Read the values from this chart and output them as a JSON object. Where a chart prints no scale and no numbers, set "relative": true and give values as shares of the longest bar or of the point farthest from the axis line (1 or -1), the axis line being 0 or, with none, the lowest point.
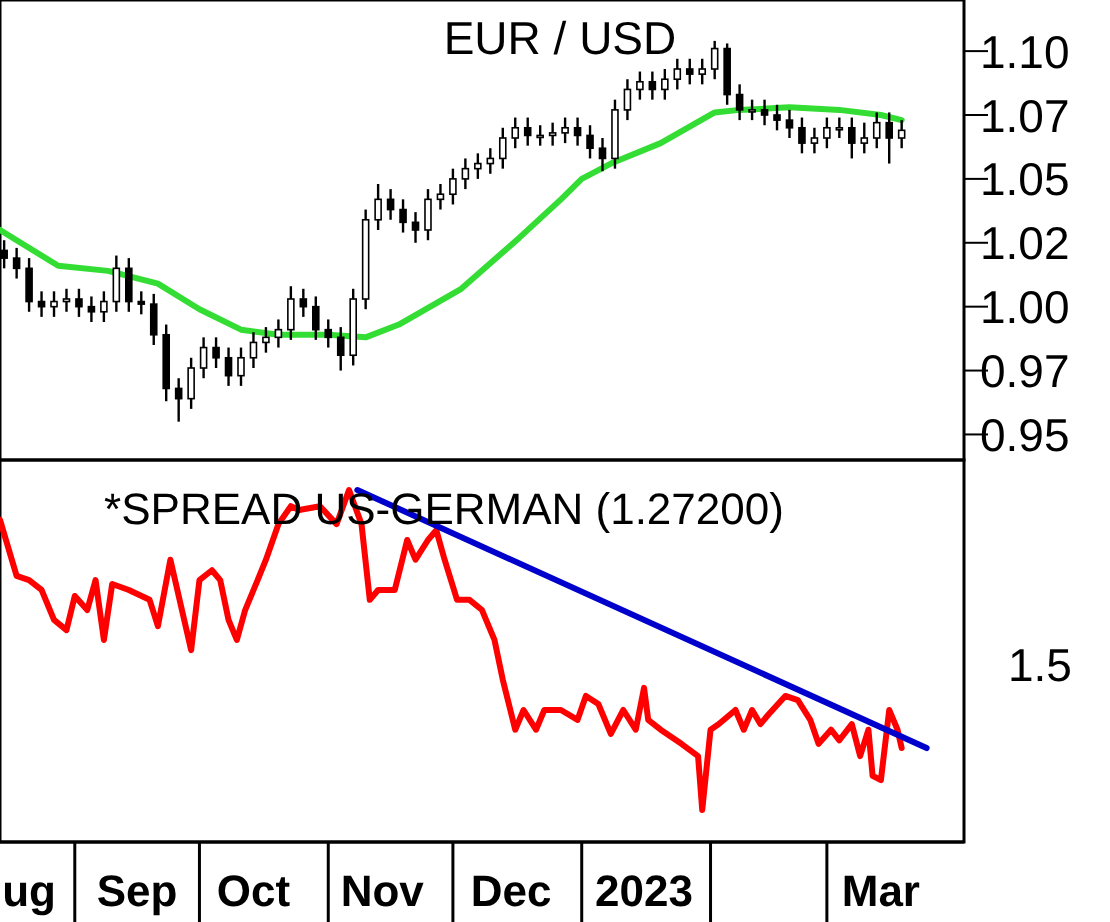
{
  "chart_data": [
    {
      "type": "candlestick",
      "title": "EUR / USD",
      "color": "#000000",
      "x": [
        "2022-08-15",
        "2022-08-18",
        "2022-08-21",
        "2022-08-24",
        "2022-08-27",
        "2022-08-30",
        "2022-09-02",
        "2022-09-05",
        "2022-09-08",
        "2022-09-11",
        "2022-09-14",
        "2022-09-17",
        "2022-09-20",
        "2022-09-23",
        "2022-09-26",
        "2022-09-29",
        "2022-10-02",
        "2022-10-05",
        "2022-10-08",
        "2022-10-11",
        "2022-10-14",
        "2022-10-17",
        "2022-10-20",
        "2022-10-23",
        "2022-10-26",
        "2022-10-29",
        "2022-11-01",
        "2022-11-04",
        "2022-11-07",
        "2022-11-10",
        "2022-11-13",
        "2022-11-16",
        "2022-11-19",
        "2022-11-22",
        "2022-11-25",
        "2022-11-28",
        "2022-12-01",
        "2022-12-04",
        "2022-12-07",
        "2022-12-10",
        "2022-12-13",
        "2022-12-16",
        "2022-12-19",
        "2022-12-22",
        "2022-12-25",
        "2022-12-28",
        "2022-12-31",
        "2023-01-03",
        "2023-01-06",
        "2023-01-09",
        "2023-01-12",
        "2023-01-15",
        "2023-01-18",
        "2023-01-21",
        "2023-01-24",
        "2023-01-27",
        "2023-01-30",
        "2023-02-02",
        "2023-02-05",
        "2023-02-08",
        "2023-02-11",
        "2023-02-14",
        "2023-02-17",
        "2023-02-20",
        "2023-02-23",
        "2023-02-26",
        "2023-03-01",
        "2023-03-04",
        "2023-03-07",
        "2023-03-10",
        "2023-03-13",
        "2023-03-16",
        "2023-03-19"
      ],
      "ohlc": [
        [
          1.022,
          1.026,
          1.015,
          1.019
        ],
        [
          1.019,
          1.023,
          1.011,
          1.015
        ],
        [
          1.015,
          1.019,
          0.998,
          1.002
        ],
        [
          1.002,
          1.006,
          0.996,
          1.0
        ],
        [
          1.0,
          1.006,
          0.996,
          1.002
        ],
        [
          1.002,
          1.007,
          0.998,
          1.003
        ],
        [
          1.003,
          1.007,
          0.996,
          1.0
        ],
        [
          1.0,
          1.004,
          0.994,
          0.998
        ],
        [
          0.998,
          1.006,
          0.994,
          1.002
        ],
        [
          1.002,
          1.02,
          0.998,
          1.015
        ],
        [
          1.015,
          1.019,
          0.998,
          1.002
        ],
        [
          1.002,
          1.006,
          0.997,
          1.001
        ],
        [
          1.001,
          1.005,
          0.985,
          0.989
        ],
        [
          0.989,
          0.993,
          0.963,
          0.968
        ],
        [
          0.968,
          0.972,
          0.955,
          0.964
        ],
        [
          0.964,
          0.98,
          0.96,
          0.976
        ],
        [
          0.976,
          0.988,
          0.972,
          0.984
        ],
        [
          0.984,
          0.988,
          0.976,
          0.98
        ],
        [
          0.98,
          0.984,
          0.969,
          0.973
        ],
        [
          0.973,
          0.984,
          0.969,
          0.98
        ],
        [
          0.98,
          0.99,
          0.976,
          0.986
        ],
        [
          0.986,
          0.992,
          0.982,
          0.988
        ],
        [
          0.988,
          0.995,
          0.984,
          0.991
        ],
        [
          0.991,
          1.008,
          0.987,
          1.003
        ],
        [
          1.003,
          1.007,
          0.996,
          1.0
        ],
        [
          1.0,
          1.004,
          0.987,
          0.991
        ],
        [
          0.991,
          0.995,
          0.984,
          0.988
        ],
        [
          0.988,
          0.992,
          0.975,
          0.981
        ],
        [
          0.981,
          1.007,
          0.977,
          1.003
        ],
        [
          1.003,
          1.038,
          0.999,
          1.034
        ],
        [
          1.034,
          1.048,
          1.03,
          1.042
        ],
        [
          1.042,
          1.046,
          1.034,
          1.038
        ],
        [
          1.038,
          1.042,
          1.029,
          1.033
        ],
        [
          1.033,
          1.037,
          1.025,
          1.03
        ],
        [
          1.03,
          1.046,
          1.026,
          1.042
        ],
        [
          1.042,
          1.048,
          1.038,
          1.044
        ],
        [
          1.044,
          1.054,
          1.04,
          1.05
        ],
        [
          1.05,
          1.058,
          1.046,
          1.054
        ],
        [
          1.054,
          1.06,
          1.05,
          1.056
        ],
        [
          1.056,
          1.062,
          1.052,
          1.058
        ],
        [
          1.058,
          1.07,
          1.054,
          1.066
        ],
        [
          1.066,
          1.074,
          1.062,
          1.07
        ],
        [
          1.07,
          1.074,
          1.063,
          1.067
        ],
        [
          1.067,
          1.071,
          1.063,
          1.067
        ],
        [
          1.067,
          1.072,
          1.063,
          1.068
        ],
        [
          1.068,
          1.074,
          1.064,
          1.07
        ],
        [
          1.07,
          1.074,
          1.063,
          1.067
        ],
        [
          1.067,
          1.071,
          1.058,
          1.062
        ],
        [
          1.062,
          1.066,
          1.053,
          1.058
        ],
        [
          1.058,
          1.081,
          1.054,
          1.077
        ],
        [
          1.077,
          1.089,
          1.073,
          1.085
        ],
        [
          1.085,
          1.092,
          1.081,
          1.088
        ],
        [
          1.088,
          1.092,
          1.081,
          1.085
        ],
        [
          1.085,
          1.093,
          1.081,
          1.089
        ],
        [
          1.089,
          1.097,
          1.085,
          1.093
        ],
        [
          1.093,
          1.097,
          1.087,
          1.091
        ],
        [
          1.091,
          1.097,
          1.087,
          1.093
        ],
        [
          1.093,
          1.104,
          1.089,
          1.101
        ],
        [
          1.101,
          1.103,
          1.079,
          1.083
        ],
        [
          1.083,
          1.087,
          1.073,
          1.077
        ],
        [
          1.077,
          1.081,
          1.073,
          1.077
        ],
        [
          1.077,
          1.081,
          1.071,
          1.075
        ],
        [
          1.075,
          1.079,
          1.069,
          1.073
        ],
        [
          1.073,
          1.077,
          1.066,
          1.07
        ],
        [
          1.07,
          1.074,
          1.06,
          1.064
        ],
        [
          1.064,
          1.07,
          1.06,
          1.066
        ],
        [
          1.066,
          1.074,
          1.062,
          1.07
        ],
        [
          1.07,
          1.074,
          1.066,
          1.07
        ],
        [
          1.07,
          1.074,
          1.058,
          1.064
        ],
        [
          1.064,
          1.072,
          1.06,
          1.066
        ],
        [
          1.066,
          1.076,
          1.062,
          1.072
        ],
        [
          1.072,
          1.076,
          1.056,
          1.066
        ],
        [
          1.066,
          1.073,
          1.062,
          1.069
        ]
      ],
      "series": [
        {
          "type": "line",
          "color": "#33dd33",
          "x": [
            "2022-08-14",
            "2022-08-28",
            "2022-09-09",
            "2022-09-21",
            "2022-10-01",
            "2022-10-11",
            "2022-10-20",
            "2022-11-01",
            "2022-11-10",
            "2022-11-18",
            "2022-12-03",
            "2022-12-17",
            "2022-12-27",
            "2023-01-01",
            "2023-01-08",
            "2023-01-20",
            "2023-02-02",
            "2023-02-08",
            "2023-02-20",
            "2023-03-04",
            "2023-03-14",
            "2023-03-19"
          ],
          "values": [
            1.03,
            1.016,
            1.014,
            1.009,
            0.999,
            0.991,
            0.989,
            0.989,
            0.988,
            0.993,
            1.007,
            1.027,
            1.042,
            1.05,
            1.056,
            1.064,
            1.076,
            1.077,
            1.078,
            1.077,
            1.075,
            1.073
          ]
        }
      ],
      "xlim": [
        "2022-08-14",
        "2023-04-03"
      ],
      "ylim": [
        0.94,
        1.12
      ],
      "yticks": [
        {
          "value": 0.95,
          "label": "0.95"
        },
        {
          "value": 0.975,
          "label": "0.97"
        },
        {
          "value": 1.0,
          "label": "1.00"
        },
        {
          "value": 1.025,
          "label": "1.02"
        },
        {
          "value": 1.05,
          "label": "1.05"
        },
        {
          "value": 1.075,
          "label": "1.07"
        },
        {
          "value": 1.1,
          "label": "1.10"
        }
      ],
      "tick_labels": "y"
    },
    {
      "type": "line",
      "title": "*SPREAD US-GERMAN (1.27200)",
      "relative": true,
      "annotations": [
        "1.5"
      ],
      "series": [
        {
          "color": "#ff0000",
          "x": [
            "2022-08-14",
            "2022-08-18",
            "2022-08-21",
            "2022-08-24",
            "2022-08-27",
            "2022-08-30",
            "2022-09-01",
            "2022-09-04",
            "2022-09-06",
            "2022-09-08",
            "2022-09-10",
            "2022-09-14",
            "2022-09-19",
            "2022-09-21",
            "2022-09-24",
            "2022-09-29",
            "2022-10-01",
            "2022-10-04",
            "2022-10-06",
            "2022-10-08",
            "2022-10-10",
            "2022-10-12",
            "2022-10-15",
            "2022-10-17",
            "2022-10-20",
            "2022-10-23",
            "2022-10-25",
            "2022-10-30",
            "2022-11-03",
            "2022-11-06",
            "2022-11-09",
            "2022-11-11",
            "2022-11-13",
            "2022-11-17",
            "2022-11-20",
            "2022-11-22",
            "2022-11-25",
            "2022-11-27",
            "2022-11-29",
            "2022-12-02",
            "2022-12-05",
            "2022-12-08",
            "2022-12-11",
            "2022-12-13",
            "2022-12-16",
            "2022-12-18",
            "2022-12-21",
            "2022-12-23",
            "2022-12-27",
            "2022-12-31",
            "2023-01-02",
            "2023-01-05",
            "2023-01-08",
            "2023-01-11",
            "2023-01-14",
            "2023-01-16",
            "2023-01-17",
            "2023-01-20",
            "2023-01-25",
            "2023-01-29",
            "2023-01-30",
            "2023-02-01",
            "2023-02-03",
            "2023-02-07",
            "2023-02-09",
            "2023-02-11",
            "2023-02-13",
            "2023-02-15",
            "2023-02-19",
            "2023-02-22",
            "2023-02-25",
            "2023-02-27",
            "2023-03-02",
            "2023-03-04",
            "2023-03-07",
            "2023-03-09",
            "2023-03-11",
            "2023-03-12",
            "2023-03-14",
            "2023-03-16",
            "2023-03-18",
            "2023-03-19"
          ],
          "values": [
            0.915,
            0.756,
            0.744,
            0.716,
            0.631,
            0.602,
            0.699,
            0.659,
            0.744,
            0.574,
            0.733,
            0.716,
            0.688,
            0.613,
            0.802,
            0.545,
            0.744,
            0.772,
            0.744,
            0.631,
            0.574,
            0.659,
            0.744,
            0.802,
            0.903,
            0.954,
            0.943,
            0.954,
            0.903,
            1,
            0.903,
            0.688,
            0.716,
            0.716,
            0.858,
            0.802,
            0.858,
            0.886,
            0.802,
            0.688,
            0.688,
            0.659,
            0.574,
            0.461,
            0.319,
            0.375,
            0.319,
            0.375,
            0.375,
            0.347,
            0.415,
            0.392,
            0.307,
            0.375,
            0.319,
            0.438,
            0.347,
            0.319,
            0.279,
            0.244,
            0.091,
            0.319,
            0.335,
            0.375,
            0.319,
            0.375,
            0.335,
            0.363,
            0.415,
            0.403,
            0.347,
            0.279,
            0.319,
            0.289,
            0.335,
            0.244,
            0.319,
            0.188,
            0.176,
            0.375,
            0.319,
            0.267
          ]
        },
        {
          "color": "#0000cc",
          "x": [
            "2022-11-08",
            "2023-03-25"
          ],
          "values": [
            1,
            0.267
          ]
        }
      ],
      "xlim": [
        "2022-08-14",
        "2023-04-03"
      ],
      "xticks": [
        {
          "value": "2022-08-21",
          "label": "ug"
        },
        {
          "value": "2022-09-01",
          "label": null
        },
        {
          "value": "2022-09-16",
          "label": "Sep"
        },
        {
          "value": "2022-10-01",
          "label": null
        },
        {
          "value": "2022-10-14",
          "label": "Oct"
        },
        {
          "value": "2022-11-01",
          "label": null
        },
        {
          "value": "2022-11-14",
          "label": "Nov"
        },
        {
          "value": "2022-12-01",
          "label": null
        },
        {
          "value": "2022-12-15",
          "label": "Dec"
        },
        {
          "value": "2023-01-01",
          "label": null
        },
        {
          "value": "2023-01-16",
          "label": "2023"
        },
        {
          "value": "2023-02-01",
          "label": null
        },
        {
          "value": "2023-03-01",
          "label": null
        },
        {
          "value": "2023-03-14",
          "label": "Mar"
        }
      ]
    }
  ]
}
